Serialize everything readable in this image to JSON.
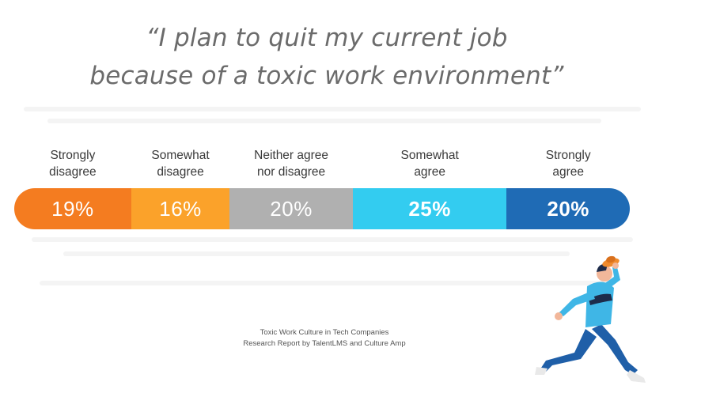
{
  "title_lines": [
    "“I plan to quit my current job",
    "because of a toxic work environment”"
  ],
  "chart_data": {
    "type": "bar",
    "orientation": "horizontal-stacked-100",
    "categories": [
      "Strongly\ndisagree",
      "Somewhat\ndisagree",
      "Neither agree\nnor disagree",
      "Somewhat\nagree",
      "Strongly\nagree"
    ],
    "values": [
      19,
      16,
      20,
      25,
      20
    ],
    "value_labels": [
      "19%",
      "16%",
      "20%",
      "25%",
      "20%"
    ],
    "colors": [
      "#f47c20",
      "#fba22a",
      "#b0b0b0",
      "#33ccf0",
      "#1f6bb5"
    ],
    "title": "“I plan to quit my current job because of a toxic work environment”"
  },
  "source": {
    "line1": "Toxic Work Culture in Tech Companies",
    "line2": "Research Report by TalentLMS and Culture Amp"
  },
  "illustration": {
    "name": "running-person-holding-hat",
    "colors": {
      "shirt": "#3fb6e6",
      "pants": "#1f5fa8",
      "hat": "#f08a2c",
      "skin": "#f2b79a",
      "hair": "#1d2b4a"
    }
  }
}
